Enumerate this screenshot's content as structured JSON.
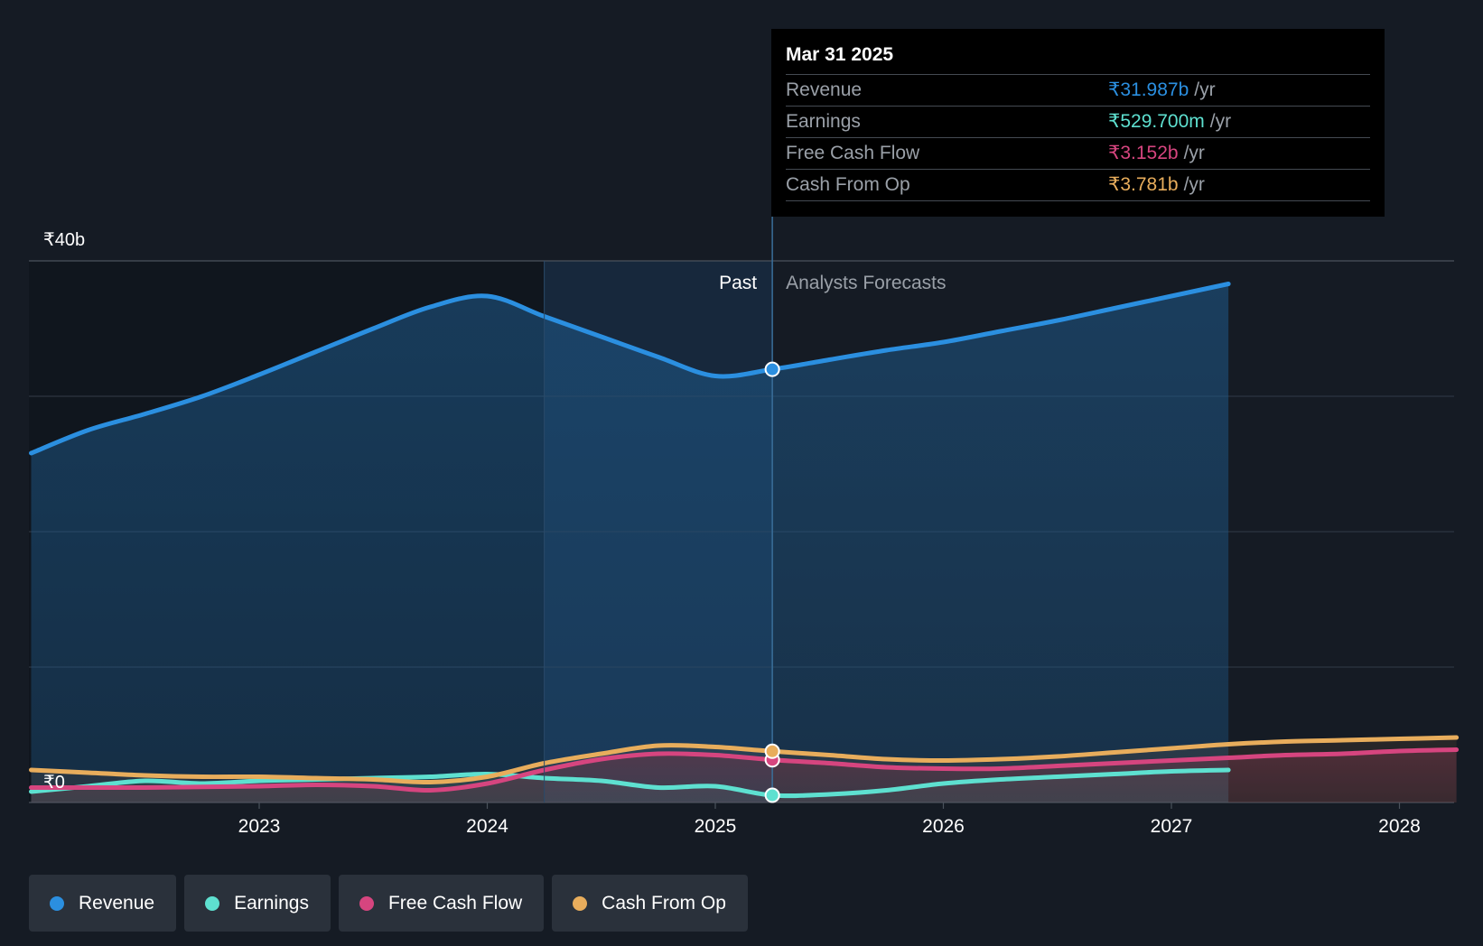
{
  "chart_data": {
    "type": "area",
    "y_unit_labels": {
      "top": "₹40b",
      "bottom": "₹0"
    },
    "ylim": [
      0,
      40
    ],
    "x_tick_labels": [
      "2023",
      "2024",
      "2025",
      "2026",
      "2027",
      "2028"
    ],
    "x_ticks": [
      2023,
      2024,
      2025,
      2026,
      2027,
      2028
    ],
    "xlim": [
      2021.75,
      2028.25
    ],
    "past_label": "Past",
    "forecast_label": "Analysts Forecasts",
    "divider_x": 2025.25,
    "shade_start_x": 2024.25,
    "series": [
      {
        "name": "Revenue",
        "color": "#2b8fe0",
        "points": [
          [
            2022.0,
            25.8
          ],
          [
            2022.25,
            27.5
          ],
          [
            2022.5,
            28.7
          ],
          [
            2022.75,
            30.0
          ],
          [
            2023.0,
            31.6
          ],
          [
            2023.25,
            33.3
          ],
          [
            2023.5,
            35.0
          ],
          [
            2023.75,
            36.6
          ],
          [
            2024.0,
            37.4
          ],
          [
            2024.25,
            35.9
          ],
          [
            2024.5,
            34.4
          ],
          [
            2024.75,
            32.9
          ],
          [
            2025.0,
            31.5
          ],
          [
            2025.25,
            31.99
          ],
          [
            2025.5,
            32.7
          ],
          [
            2025.75,
            33.4
          ],
          [
            2026.0,
            34.0
          ],
          [
            2026.25,
            34.8
          ],
          [
            2026.5,
            35.6
          ],
          [
            2026.75,
            36.5
          ],
          [
            2027.0,
            37.4
          ],
          [
            2027.25,
            38.3
          ]
        ]
      },
      {
        "name": "Earnings",
        "color": "#5ee0d0",
        "points": [
          [
            2022.0,
            0.8
          ],
          [
            2022.25,
            1.2
          ],
          [
            2022.5,
            1.6
          ],
          [
            2022.75,
            1.4
          ],
          [
            2023.0,
            1.6
          ],
          [
            2023.25,
            1.7
          ],
          [
            2023.5,
            1.8
          ],
          [
            2023.75,
            1.9
          ],
          [
            2024.0,
            2.1
          ],
          [
            2024.25,
            1.8
          ],
          [
            2024.5,
            1.6
          ],
          [
            2024.75,
            1.1
          ],
          [
            2025.0,
            1.2
          ],
          [
            2025.25,
            0.53
          ],
          [
            2025.5,
            0.6
          ],
          [
            2025.75,
            0.9
          ],
          [
            2026.0,
            1.4
          ],
          [
            2026.25,
            1.7
          ],
          [
            2026.5,
            1.9
          ],
          [
            2026.75,
            2.1
          ],
          [
            2027.0,
            2.3
          ],
          [
            2027.25,
            2.4
          ]
        ]
      },
      {
        "name": "Free Cash Flow",
        "color": "#d6457f",
        "points": [
          [
            2022.0,
            1.1
          ],
          [
            2022.25,
            1.1
          ],
          [
            2022.5,
            1.1
          ],
          [
            2022.75,
            1.15
          ],
          [
            2023.0,
            1.2
          ],
          [
            2023.25,
            1.3
          ],
          [
            2023.5,
            1.2
          ],
          [
            2023.75,
            0.9
          ],
          [
            2024.0,
            1.4
          ],
          [
            2024.25,
            2.4
          ],
          [
            2024.5,
            3.2
          ],
          [
            2024.75,
            3.6
          ],
          [
            2025.0,
            3.5
          ],
          [
            2025.25,
            3.15
          ],
          [
            2025.5,
            2.9
          ],
          [
            2025.75,
            2.6
          ],
          [
            2026.0,
            2.5
          ],
          [
            2026.25,
            2.5
          ],
          [
            2026.5,
            2.7
          ],
          [
            2026.75,
            2.9
          ],
          [
            2027.0,
            3.1
          ],
          [
            2027.25,
            3.3
          ],
          [
            2027.5,
            3.5
          ],
          [
            2027.75,
            3.6
          ],
          [
            2028.0,
            3.8
          ],
          [
            2028.25,
            3.9
          ]
        ]
      },
      {
        "name": "Cash From Op",
        "color": "#e8ad5c",
        "points": [
          [
            2022.0,
            2.4
          ],
          [
            2022.25,
            2.2
          ],
          [
            2022.5,
            2.0
          ],
          [
            2022.75,
            1.9
          ],
          [
            2023.0,
            1.9
          ],
          [
            2023.25,
            1.8
          ],
          [
            2023.5,
            1.7
          ],
          [
            2023.75,
            1.5
          ],
          [
            2024.0,
            1.9
          ],
          [
            2024.25,
            2.9
          ],
          [
            2024.5,
            3.6
          ],
          [
            2024.75,
            4.2
          ],
          [
            2025.0,
            4.1
          ],
          [
            2025.25,
            3.78
          ],
          [
            2025.5,
            3.5
          ],
          [
            2025.75,
            3.2
          ],
          [
            2026.0,
            3.1
          ],
          [
            2026.25,
            3.2
          ],
          [
            2026.5,
            3.4
          ],
          [
            2026.75,
            3.7
          ],
          [
            2027.0,
            4.0
          ],
          [
            2027.25,
            4.3
          ],
          [
            2027.5,
            4.5
          ],
          [
            2027.75,
            4.6
          ],
          [
            2028.0,
            4.7
          ],
          [
            2028.25,
            4.8
          ]
        ]
      }
    ]
  },
  "tooltip": {
    "date": "Mar 31 2025",
    "rows": [
      {
        "label": "Revenue",
        "value": "₹31.987b",
        "unit": "/yr",
        "color": "#2b8fe0"
      },
      {
        "label": "Earnings",
        "value": "₹529.700m",
        "unit": "/yr",
        "color": "#5ee0d0"
      },
      {
        "label": "Free Cash Flow",
        "value": "₹3.152b",
        "unit": "/yr",
        "color": "#d6457f"
      },
      {
        "label": "Cash From Op",
        "value": "₹3.781b",
        "unit": "/yr",
        "color": "#e8ad5c"
      }
    ]
  },
  "legend": [
    {
      "label": "Revenue",
      "color": "#2b8fe0"
    },
    {
      "label": "Earnings",
      "color": "#5ee0d0"
    },
    {
      "label": "Free Cash Flow",
      "color": "#d6457f"
    },
    {
      "label": "Cash From Op",
      "color": "#e8ad5c"
    }
  ]
}
